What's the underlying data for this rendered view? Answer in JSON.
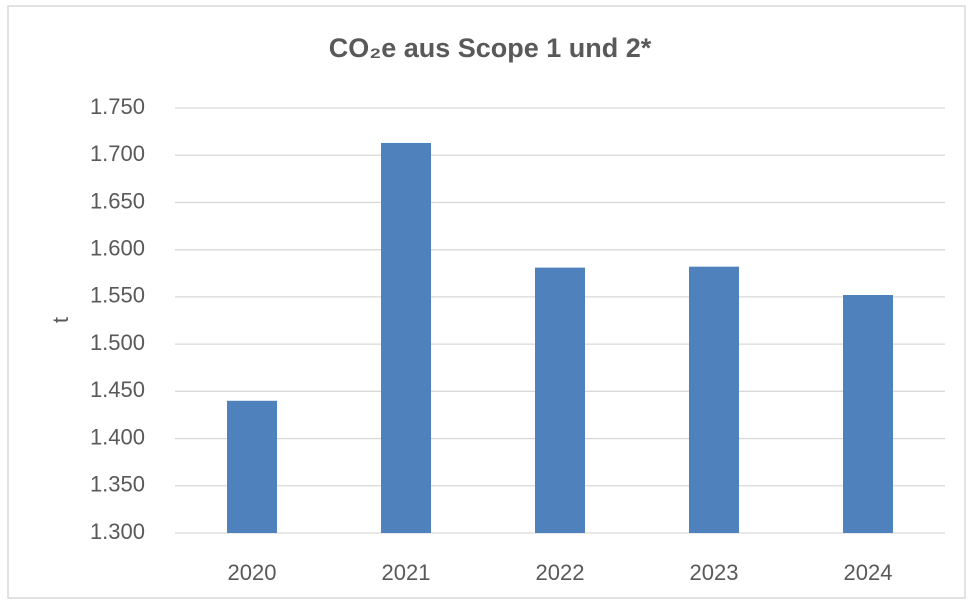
{
  "chart_data": {
    "type": "bar",
    "title": "CO₂e aus Scope 1 und 2*",
    "y_label": "t",
    "categories": [
      "2020",
      "2021",
      "2022",
      "2023",
      "2024"
    ],
    "values": [
      1440,
      1713,
      1581,
      1582,
      1552
    ],
    "color": "#4f81bd",
    "ylim": [
      1300,
      1750
    ],
    "yticks": [
      {
        "value": 1300,
        "label": "1.300"
      },
      {
        "value": 1350,
        "label": "1.350"
      },
      {
        "value": 1400,
        "label": "1.400"
      },
      {
        "value": 1450,
        "label": "1.450"
      },
      {
        "value": 1500,
        "label": "1.500"
      },
      {
        "value": 1550,
        "label": "1.550"
      },
      {
        "value": 1600,
        "label": "1.600"
      },
      {
        "value": 1650,
        "label": "1.650"
      },
      {
        "value": 1700,
        "label": "1.700"
      },
      {
        "value": 1750,
        "label": "1.750"
      }
    ],
    "grid": true
  }
}
